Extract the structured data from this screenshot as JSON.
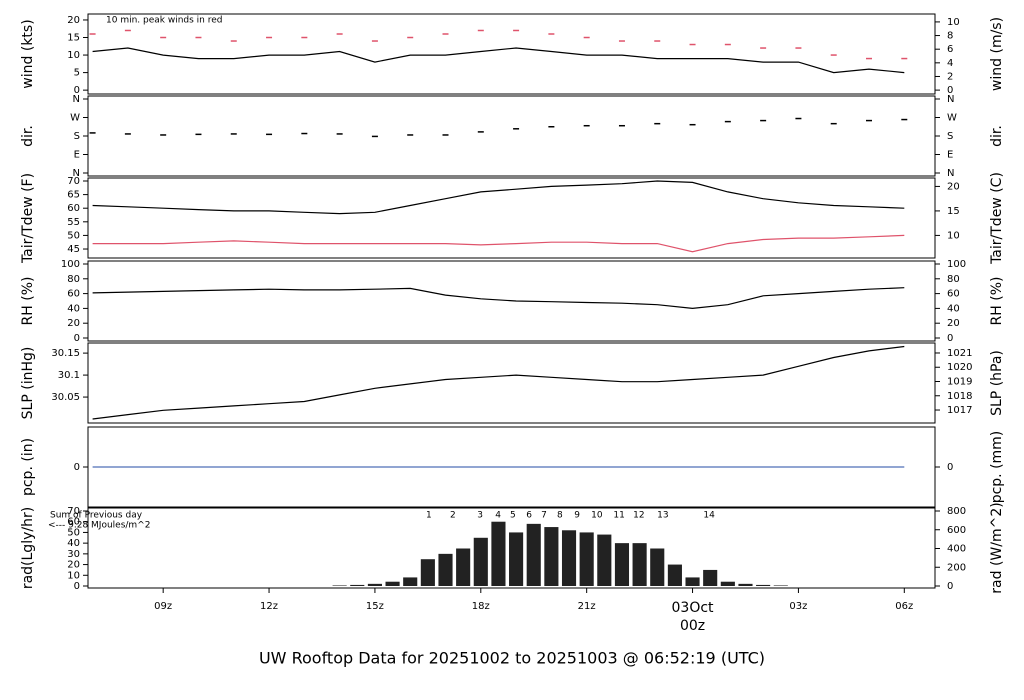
{
  "title": "UW Rooftop Data for 20251002  to  20251003 @ 06:52:19  (UTC)",
  "title_color": "#2e9bd6",
  "chart_data": [
    {
      "type": "line",
      "ylabel": "wind (kts)",
      "y2label": "wind (m/s)",
      "annotation": {
        "text": "10 min. peak winds in red",
        "color": "#df536b"
      },
      "xlim": [
        6.87,
        30.87
      ],
      "ylim": [
        -1.1,
        21.7
      ],
      "yticks": [
        0,
        5,
        10,
        15,
        20
      ],
      "y2lim": [
        -0.57,
        11.16
      ],
      "y2ticks": [
        0,
        2,
        4,
        6,
        8,
        10
      ],
      "series": [
        {
          "name": "wind",
          "color": "#000000",
          "x": [
            7,
            8,
            9,
            10,
            11,
            12,
            13,
            14,
            15,
            16,
            17,
            18,
            19,
            20,
            21,
            22,
            23,
            24,
            25,
            26,
            27,
            28,
            29,
            30
          ],
          "values": [
            11,
            12,
            10,
            9,
            9,
            10,
            10,
            11,
            8,
            10,
            10,
            11,
            12,
            11,
            10,
            10,
            9,
            9,
            9,
            8,
            8,
            5,
            6,
            5
          ]
        },
        {
          "name": "peak",
          "color": "#df536b",
          "marker": "dash",
          "x": [
            7,
            8,
            9,
            10,
            11,
            12,
            13,
            14,
            15,
            16,
            17,
            18,
            19,
            20,
            21,
            22,
            23,
            24,
            25,
            26,
            27,
            28,
            29,
            30
          ],
          "values": [
            16,
            17,
            15,
            15,
            14,
            15,
            15,
            16,
            14,
            15,
            16,
            17,
            17,
            16,
            15,
            14,
            14,
            13,
            13,
            12,
            12,
            10,
            9,
            9
          ]
        }
      ]
    },
    {
      "type": "scatter",
      "ylabel": "dir.",
      "y2label": "dir.",
      "xlim": [
        6.87,
        30.87
      ],
      "ylim": [
        -14.6,
        374.6
      ],
      "yticks": [
        {
          "value": 0,
          "label": "N"
        },
        {
          "value": 90,
          "label": "E"
        },
        {
          "value": 180,
          "label": "S"
        },
        {
          "value": 270,
          "label": "W"
        },
        {
          "value": 360,
          "label": "N"
        }
      ],
      "y2lim": [
        -14.6,
        374.6
      ],
      "y2ticks": [
        {
          "value": 0,
          "label": "N"
        },
        {
          "value": 90,
          "label": "E"
        },
        {
          "value": 180,
          "label": "S"
        },
        {
          "value": 270,
          "label": "W"
        },
        {
          "value": 360,
          "label": "N"
        }
      ],
      "series": [
        {
          "name": "direction",
          "color": "#000000",
          "marker": "dash",
          "x": [
            7,
            8,
            9,
            10,
            11,
            12,
            13,
            14,
            15,
            16,
            17,
            18,
            19,
            20,
            21,
            22,
            23,
            24,
            25,
            26,
            27,
            28,
            29,
            30
          ],
          "values": [
            195,
            190,
            185,
            188,
            190,
            188,
            192,
            190,
            178,
            185,
            185,
            200,
            215,
            225,
            230,
            230,
            240,
            235,
            250,
            255,
            265,
            240,
            255,
            260
          ]
        }
      ]
    },
    {
      "type": "line",
      "ylabel": "Tair/Tdew (F)",
      "y2label": "Tair/Tdew (C)",
      "xlim": [
        6.87,
        30.87
      ],
      "ylim": [
        41.7,
        71.1
      ],
      "yticks": [
        45,
        50,
        55,
        60,
        65,
        70
      ],
      "y2lim": [
        5.39,
        21.72
      ],
      "y2ticks": [
        10,
        15,
        20
      ],
      "series": [
        {
          "name": "Tair",
          "color": "#000000",
          "x": [
            7,
            8,
            9,
            10,
            11,
            12,
            13,
            14,
            15,
            16,
            17,
            18,
            19,
            20,
            21,
            22,
            23,
            24,
            25,
            26,
            27,
            28,
            29,
            30
          ],
          "values": [
            61,
            60.5,
            60,
            59.5,
            59,
            59,
            58.5,
            58,
            58.5,
            61,
            63.5,
            66,
            67,
            68,
            68.5,
            69,
            70,
            69.5,
            66,
            63.5,
            62,
            61,
            60.5,
            60
          ]
        },
        {
          "name": "Tdew",
          "color": "#df536b",
          "x": [
            7,
            8,
            9,
            10,
            11,
            12,
            13,
            14,
            15,
            16,
            17,
            18,
            19,
            20,
            21,
            22,
            23,
            24,
            25,
            26,
            27,
            28,
            29,
            30
          ],
          "values": [
            47,
            47,
            47,
            47.5,
            48,
            47.5,
            47,
            47,
            47,
            47,
            47,
            46.5,
            47,
            47.5,
            47.5,
            47,
            47,
            44,
            47,
            48.5,
            49,
            49,
            49.5,
            50
          ]
        }
      ]
    },
    {
      "type": "line",
      "ylabel": "RH (%)",
      "y2label": "RH (%)",
      "xlim": [
        6.87,
        30.87
      ],
      "ylim": [
        -4.05,
        104.05
      ],
      "yticks": [
        0,
        20,
        40,
        60,
        80,
        100
      ],
      "y2lim": [
        -4.05,
        104.05
      ],
      "y2ticks": [
        0,
        20,
        40,
        60,
        80,
        100
      ],
      "series": [
        {
          "name": "RH",
          "color": "#000000",
          "x": [
            7,
            8,
            9,
            10,
            11,
            12,
            13,
            14,
            15,
            16,
            17,
            18,
            19,
            20,
            21,
            22,
            23,
            24,
            25,
            26,
            27,
            28,
            29,
            30
          ],
          "values": [
            61,
            62,
            63,
            64,
            65,
            66,
            65,
            65,
            66,
            67,
            58,
            53,
            50,
            49,
            48,
            47,
            45,
            40,
            45,
            57,
            60,
            63,
            66,
            68
          ]
        }
      ]
    },
    {
      "type": "line",
      "ylabel": "SLP (inHg)",
      "y2label": "SLP (hPa)",
      "xlim": [
        6.87,
        30.87
      ],
      "ylim": [
        29.991,
        30.173
      ],
      "yticks": [
        30.05,
        30.1,
        30.15
      ],
      "y2lim": [
        1016.09,
        1021.7
      ],
      "y2ticks": [
        1017,
        1018,
        1019,
        1020,
        1021
      ],
      "series": [
        {
          "name": "SLP",
          "color": "#000000",
          "x": [
            7,
            8,
            9,
            10,
            11,
            12,
            13,
            14,
            15,
            16,
            17,
            18,
            19,
            20,
            21,
            22,
            23,
            24,
            25,
            26,
            27,
            28,
            29,
            30
          ],
          "values": [
            30.0,
            30.01,
            30.02,
            30.025,
            30.03,
            30.035,
            30.04,
            30.055,
            30.07,
            30.08,
            30.09,
            30.095,
            30.1,
            30.095,
            30.09,
            30.085,
            30.085,
            30.09,
            30.095,
            30.1,
            30.12,
            30.14,
            30.155,
            30.165
          ]
        }
      ]
    },
    {
      "type": "line",
      "ylabel": "pcp. (in)",
      "y2label": "pcp. (mm)",
      "xlim": [
        6.87,
        30.87
      ],
      "ylim": [
        -1,
        1
      ],
      "yticks": [
        0
      ],
      "y2lim": [
        -25.4,
        25.4
      ],
      "y2ticks": [
        0
      ],
      "series": [
        {
          "name": "pcp",
          "color": "#4f6fb8",
          "x": [
            7,
            8,
            9,
            10,
            11,
            12,
            13,
            14,
            15,
            16,
            17,
            18,
            19,
            20,
            21,
            22,
            23,
            24,
            25,
            26,
            27,
            28,
            29,
            30
          ],
          "values": [
            0,
            0,
            0,
            0,
            0,
            0,
            0,
            0,
            0,
            0,
            0,
            0,
            0,
            0,
            0,
            0,
            0,
            0,
            0,
            0,
            0,
            0,
            0,
            0
          ]
        }
      ]
    },
    {
      "type": "bar",
      "ylabel": "rad(Lgly/hr)",
      "y2label": "rad (W/m^2)",
      "notes": [
        "Sum of Previous day",
        "<--- 9.28 MJoules/m^2"
      ],
      "notes_color": "#a020f0",
      "hour_marks": {
        "x": [
          16.53,
          17.21,
          17.98,
          18.49,
          18.91,
          19.37,
          19.79,
          20.24,
          20.73,
          21.29,
          21.92,
          22.48,
          23.16,
          24.47
        ],
        "labels": [
          1,
          2,
          3,
          4,
          5,
          6,
          7,
          8,
          9,
          10,
          11,
          12,
          13,
          14
        ]
      },
      "xlim": [
        6.87,
        30.87
      ],
      "ylim": [
        -1.87,
        72.8
      ],
      "yticks": [
        0,
        10,
        20,
        30,
        40,
        50,
        60,
        70
      ],
      "y2lim": [
        -21.3,
        832
      ],
      "y2ticks": [
        0,
        200,
        400,
        600,
        800
      ],
      "xticks": [
        {
          "value": 9,
          "label": "09z"
        },
        {
          "value": 12,
          "label": "12z"
        },
        {
          "value": 15,
          "label": "15z"
        },
        {
          "value": 18,
          "label": "18z"
        },
        {
          "value": 21,
          "label": "21z"
        },
        {
          "value": 24,
          "label": "00z",
          "color": "#df536b"
        },
        {
          "value": 27,
          "label": "03z"
        },
        {
          "value": 30,
          "label": "06z"
        }
      ],
      "date_label": {
        "text": "03Oct",
        "x": 24,
        "color": "#df536b"
      },
      "bar_width": 0.4,
      "series": [
        {
          "name": "radiation",
          "color": "#222222",
          "x": [
            14,
            14.5,
            15,
            15.5,
            16,
            16.5,
            17,
            17.5,
            18,
            18.5,
            19,
            19.5,
            20,
            20.5,
            21,
            21.5,
            22,
            22.5,
            23,
            23.5,
            24,
            24.5,
            25,
            25.5,
            26,
            26.5
          ],
          "values": [
            0.5,
            1,
            2,
            4,
            8,
            25,
            30,
            35,
            45,
            60,
            50,
            58,
            55,
            52,
            50,
            48,
            40,
            40,
            35,
            20,
            8,
            15,
            4,
            2,
            1,
            0.5
          ]
        }
      ]
    }
  ]
}
